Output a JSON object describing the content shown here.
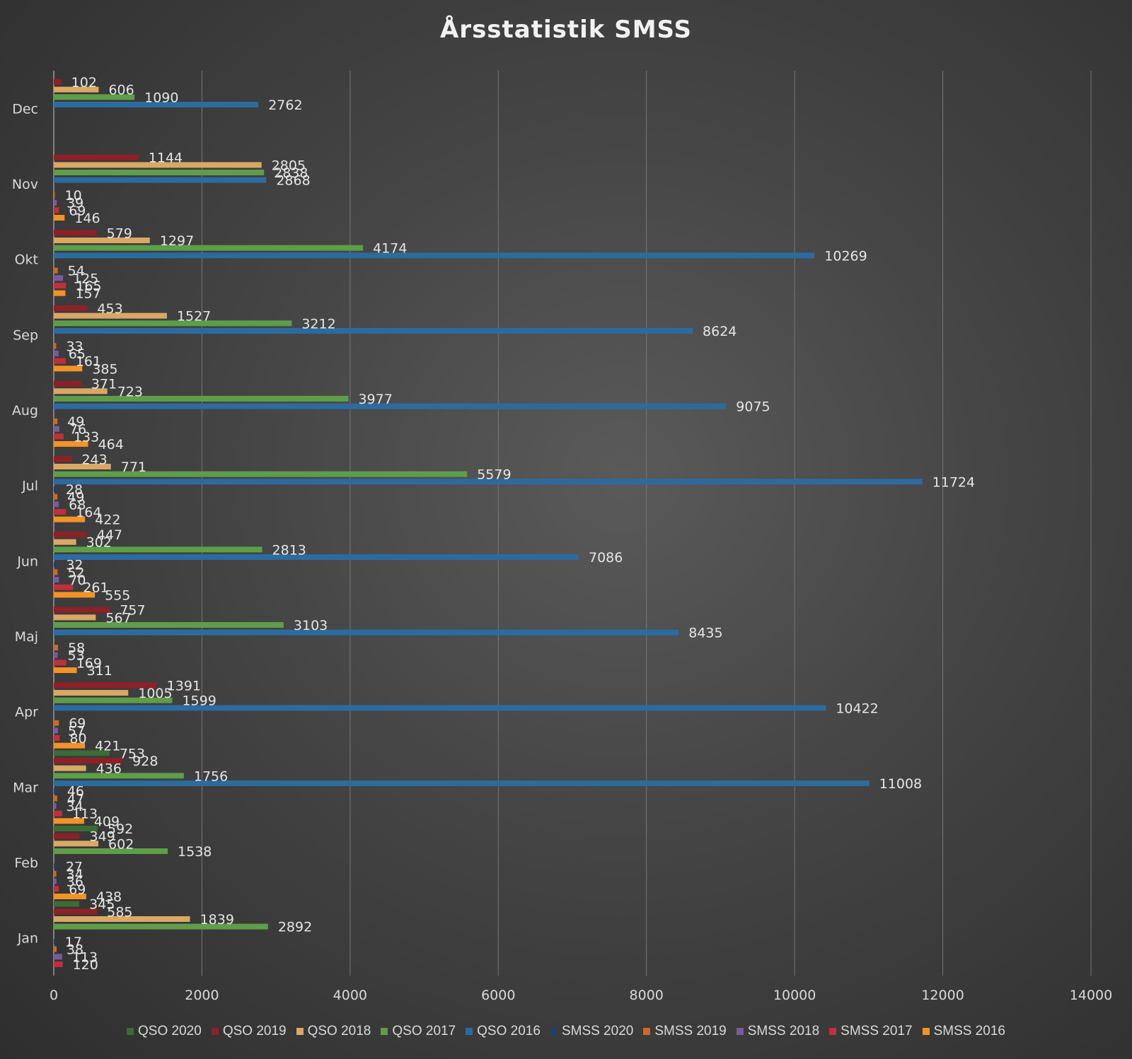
{
  "chart_data": {
    "type": "bar",
    "orientation": "horizontal",
    "title": "Årsstatistik SMSS",
    "xlabel": "",
    "ylabel": "",
    "xlim": [
      0,
      14000
    ],
    "x_ticks": [
      0,
      2000,
      4000,
      6000,
      8000,
      10000,
      12000,
      14000
    ],
    "grid": true,
    "legend_position": "bottom",
    "categories": [
      "Jan",
      "Feb",
      "Mar",
      "Apr",
      "Maj",
      "Jun",
      "Jul",
      "Aug",
      "Sep",
      "Okt",
      "Nov",
      "Dec"
    ],
    "series": [
      {
        "name": "SMSS 2016",
        "color": "#f39226",
        "values": [
          null,
          438,
          409,
          421,
          311,
          555,
          422,
          464,
          385,
          157,
          146,
          null
        ]
      },
      {
        "name": "SMSS 2017",
        "color": "#c0303a",
        "values": [
          120,
          69,
          113,
          80,
          169,
          261,
          164,
          133,
          161,
          165,
          69,
          null
        ]
      },
      {
        "name": "SMSS 2018",
        "color": "#7a5a9c",
        "values": [
          113,
          36,
          34,
          57,
          53,
          70,
          68,
          76,
          65,
          125,
          39,
          null
        ]
      },
      {
        "name": "SMSS 2019",
        "color": "#c66b2a",
        "values": [
          38,
          34,
          47,
          69,
          58,
          52,
          49,
          49,
          33,
          54,
          10,
          null
        ]
      },
      {
        "name": "SMSS 2020",
        "color": "#243f62",
        "values": [
          17,
          27,
          46,
          null,
          null,
          32,
          28,
          null,
          null,
          null,
          null,
          null
        ]
      },
      {
        "name": "QSO 2016",
        "color": "#2c6ba0",
        "values": [
          null,
          null,
          11008,
          10422,
          8435,
          7086,
          11724,
          9075,
          8624,
          10269,
          2868,
          2762
        ]
      },
      {
        "name": "QSO 2017",
        "color": "#5f9e48",
        "values": [
          2892,
          1538,
          1756,
          1599,
          3103,
          2813,
          5579,
          3977,
          3212,
          4174,
          2838,
          1090
        ]
      },
      {
        "name": "QSO 2018",
        "color": "#d9a864",
        "values": [
          1839,
          602,
          436,
          1005,
          567,
          302,
          771,
          723,
          1527,
          1297,
          2805,
          606
        ]
      },
      {
        "name": "QSO 2019",
        "color": "#8e2028",
        "values": [
          585,
          349,
          928,
          1391,
          757,
          447,
          243,
          371,
          453,
          579,
          1144,
          102
        ]
      },
      {
        "name": "QSO 2020",
        "color": "#3d6b35",
        "values": [
          345,
          592,
          753,
          null,
          null,
          null,
          null,
          null,
          null,
          null,
          null,
          null
        ]
      }
    ],
    "legend_order": [
      "QSO 2020",
      "QSO 2019",
      "QSO 2018",
      "QSO 2017",
      "QSO 2016",
      "SMSS 2020",
      "SMSS 2019",
      "SMSS 2018",
      "SMSS 2017",
      "SMSS 2016"
    ]
  }
}
